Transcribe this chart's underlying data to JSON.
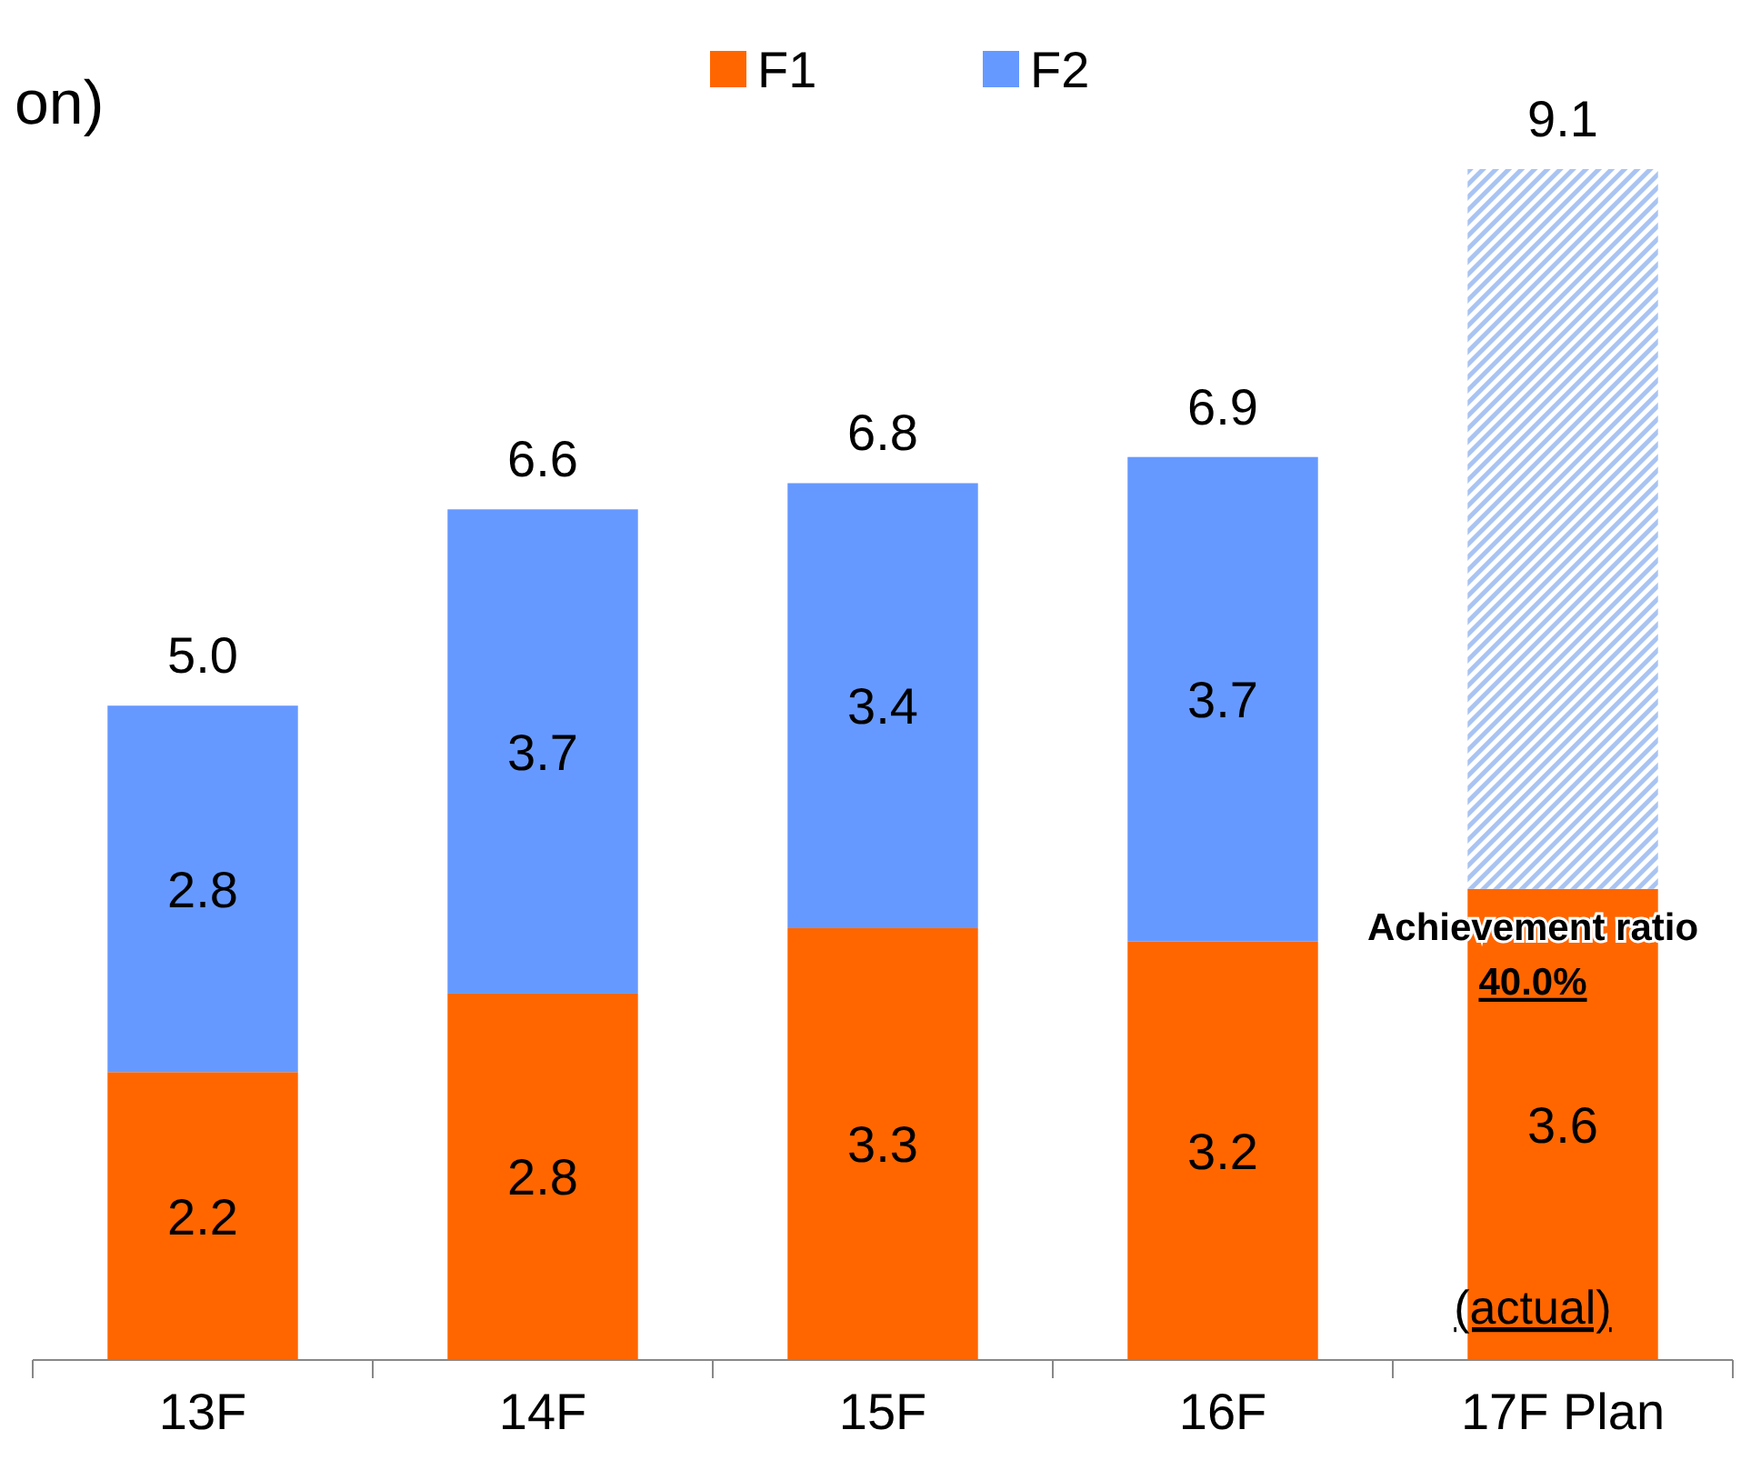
{
  "chart_data": {
    "type": "bar",
    "title": "on)",
    "categories": [
      "13F",
      "14F",
      "15F",
      "16F",
      "17F Plan"
    ],
    "stacked": true,
    "data_labels": true,
    "legend": "top",
    "tick_labels": "x",
    "series": [
      {
        "name": "F1",
        "color": "#ff6600",
        "values": [
          2.2,
          2.8,
          3.3,
          3.2,
          3.6
        ]
      },
      {
        "name": "F2",
        "color": "#6699ff",
        "values": [
          2.8,
          3.7,
          3.4,
          3.7,
          null
        ]
      },
      {
        "color": "#a9c4f2",
        "values": [
          null,
          null,
          null,
          null,
          5.5
        ],
        "value_labels": [
          null,
          null,
          null,
          null,
          null
        ]
      }
    ],
    "totals": [
      "5.0",
      "6.6",
      "6.8",
      "6.9",
      "9.1"
    ],
    "annotations": [
      "Achievement ratio",
      "40.0%",
      "(actual)"
    ]
  }
}
